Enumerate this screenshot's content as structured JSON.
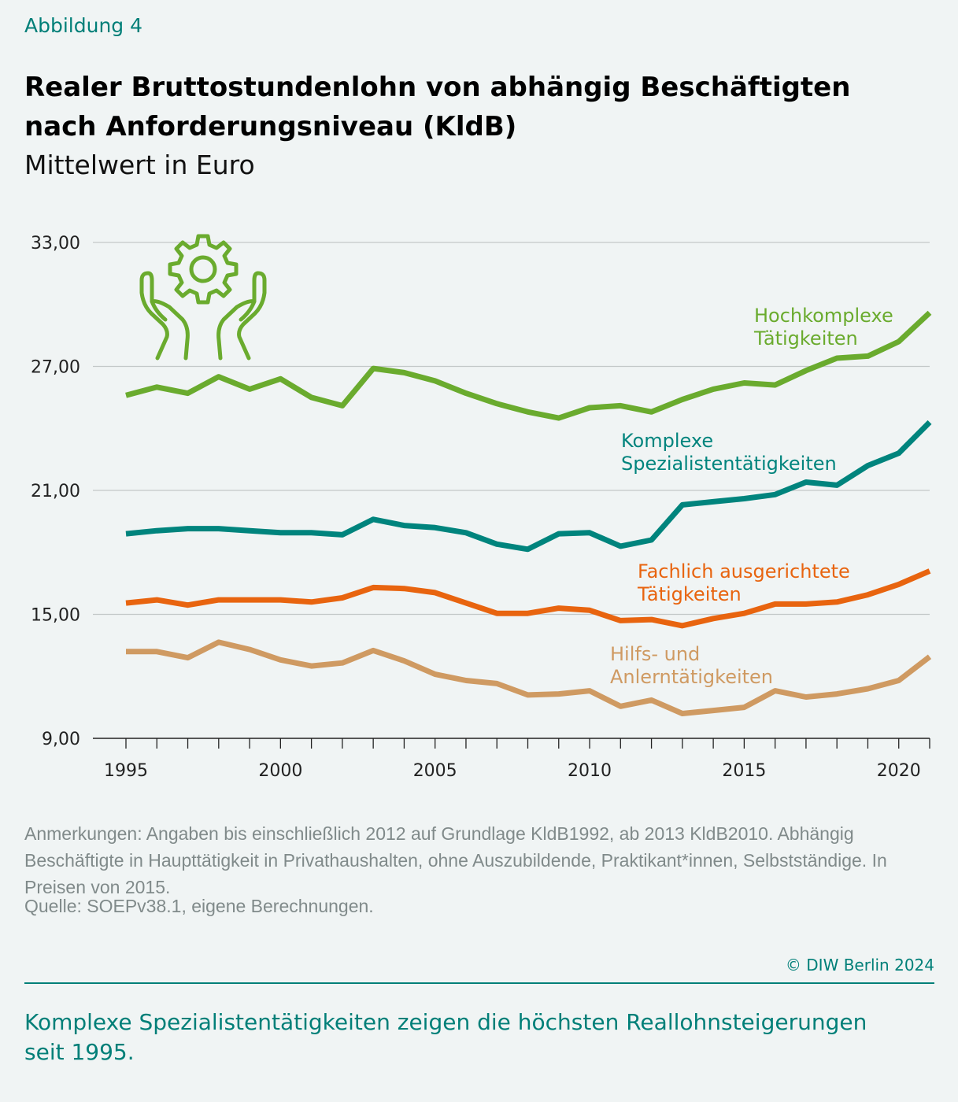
{
  "header": {
    "kicker": "Abbildung 4",
    "title": "Realer Bruttostundenlohn von abhängig Beschäftigten nach Anforderungsniveau (KldB)",
    "subtitle": "Mittelwert in Euro"
  },
  "icon": "hands-holding-gear-icon",
  "chart_data": {
    "type": "line",
    "x": [
      1995,
      1996,
      1997,
      1998,
      1999,
      2000,
      2001,
      2002,
      2003,
      2004,
      2005,
      2006,
      2007,
      2008,
      2009,
      2010,
      2011,
      2012,
      2013,
      2014,
      2015,
      2016,
      2017,
      2018,
      2019,
      2020,
      2021
    ],
    "xlim": [
      1995,
      2021
    ],
    "xtick_labels": [
      "1995",
      "2000",
      "2005",
      "2010",
      "2015",
      "2020"
    ],
    "xtick_values": [
      1995,
      2000,
      2005,
      2010,
      2015,
      2020
    ],
    "ylim": [
      9,
      33
    ],
    "ytick_values": [
      9,
      15,
      21,
      27,
      33
    ],
    "ytick_labels": [
      "9,00",
      "15,00",
      "21,00",
      "27,00",
      "33,00"
    ],
    "grid": "horizontal",
    "series": [
      {
        "name": "Hochkomplexe Tätigkeiten",
        "label_lines": [
          "Hochkomplexe",
          "Tätigkeiten"
        ],
        "color": "#6aab2e",
        "values": [
          25.6,
          26.0,
          25.7,
          26.5,
          25.9,
          26.4,
          25.5,
          25.1,
          26.9,
          26.7,
          26.3,
          25.7,
          25.2,
          24.8,
          24.5,
          25.0,
          25.1,
          24.8,
          25.4,
          25.9,
          26.2,
          26.1,
          26.8,
          27.4,
          27.5,
          28.2,
          29.6
        ]
      },
      {
        "name": "Komplexe Spezialistentätigkeiten",
        "label_lines": [
          "Komplexe",
          "Spezialistentätigkeiten"
        ],
        "color": "#00847d",
        "values": [
          18.9,
          19.05,
          19.15,
          19.15,
          19.05,
          18.95,
          18.95,
          18.85,
          19.6,
          19.3,
          19.2,
          18.95,
          18.4,
          18.15,
          18.9,
          18.95,
          18.3,
          18.6,
          20.3,
          20.45,
          20.6,
          20.8,
          21.4,
          21.25,
          22.2,
          22.8,
          24.3
        ]
      },
      {
        "name": "Fachlich ausgerichtete Tätigkeiten",
        "label_lines": [
          "Fachlich ausgerichtete",
          "Tätigkeiten"
        ],
        "color": "#e8640f",
        "values": [
          15.55,
          15.7,
          15.45,
          15.7,
          15.7,
          15.7,
          15.6,
          15.8,
          16.3,
          16.25,
          16.05,
          15.55,
          15.05,
          15.05,
          15.3,
          15.2,
          14.7,
          14.75,
          14.45,
          14.8,
          15.05,
          15.5,
          15.5,
          15.6,
          15.95,
          16.45,
          17.1
        ]
      },
      {
        "name": "Hilfs- und Anlerntätigkeiten",
        "label_lines": [
          "Hilfs- und",
          "Anlerntätigkeiten"
        ],
        "color": "#cf9a62",
        "values": [
          13.2,
          13.2,
          12.9,
          13.65,
          13.3,
          12.8,
          12.5,
          12.65,
          13.25,
          12.75,
          12.1,
          11.8,
          11.65,
          11.1,
          11.15,
          11.3,
          10.55,
          10.85,
          10.2,
          10.35,
          10.5,
          11.3,
          11.0,
          11.15,
          11.4,
          11.8,
          12.95
        ]
      }
    ]
  },
  "footer": {
    "notes": "Anmerkungen: Angaben bis einschließlich 2012 auf Grundlage KldB1992, ab 2013 KldB2010. Abhängig Beschäftigte in Haupttätigkeit in Privathaushalten, ohne Auszubildende, Praktikant*innen, Selbstständige. In Preisen von 2015.",
    "source": "Quelle: SOEPv38.1, eigene Berechnungen.",
    "copyright": "© DIW Berlin 2024",
    "takeaway": "Komplexe Spezialistentätigkeiten zeigen die höchsten Reallohnsteigerungen seit 1995."
  }
}
